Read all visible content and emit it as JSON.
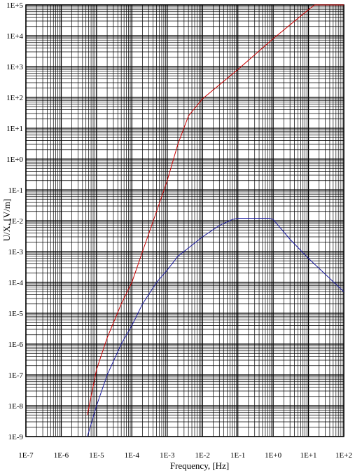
{
  "chart_data": {
    "type": "line",
    "xlabel": "Frequency, [Hz]",
    "ylabel": "U/X, [V/m]",
    "xscale": "log",
    "yscale": "log",
    "xlim": [
      1e-07,
      100
    ],
    "ylim": [
      1e-09,
      100000
    ],
    "grid": true,
    "x_tick_labels": [
      "1E-7",
      "1E-6",
      "1E-5",
      "1E-4",
      "1E-3",
      "1E-2",
      "1E-1",
      "1E+0",
      "1E+1",
      "1E+2"
    ],
    "y_tick_labels": [
      "1E-9",
      "1E-8",
      "1E-7",
      "1E-6",
      "1E-5",
      "1E-4",
      "1E-3",
      "1E-2",
      "1E-1",
      "1E+0",
      "1E+1",
      "1E+2",
      "1E+3",
      "1E+4",
      "1E+5"
    ],
    "series": [
      {
        "color": "#cc0000",
        "points": [
          [
            5.5e-06,
            5e-09
          ],
          [
            7e-06,
            2e-08
          ],
          [
            1e-05,
            1.5e-07
          ],
          [
            2e-05,
            1.6e-06
          ],
          [
            5e-05,
            2e-05
          ],
          [
            0.0001,
            0.0001
          ],
          [
            0.0002,
            0.001
          ],
          [
            0.0005,
            0.02
          ],
          [
            0.001,
            0.2
          ],
          [
            0.002,
            3
          ],
          [
            0.004,
            25
          ],
          [
            0.01,
            90
          ],
          [
            0.1,
            800
          ],
          [
            1,
            8000
          ],
          [
            10,
            70000
          ],
          [
            15,
            100000
          ],
          [
            100,
            100000
          ]
        ]
      },
      {
        "color": "#1a1aa0",
        "points": [
          [
            5.5e-06,
            1e-09
          ],
          [
            1e-05,
            1e-08
          ],
          [
            2e-05,
            1e-07
          ],
          [
            5e-05,
            1e-06
          ],
          [
            0.0001,
            4e-06
          ],
          [
            0.0002,
            2e-05
          ],
          [
            0.0005,
            0.0001
          ],
          [
            0.001,
            0.00025
          ],
          [
            0.002,
            0.0007
          ],
          [
            0.01,
            0.003
          ],
          [
            0.03,
            0.007
          ],
          [
            0.07,
            0.011
          ],
          [
            0.1,
            0.012
          ],
          [
            0.8,
            0.012
          ],
          [
            1,
            0.011
          ],
          [
            3,
            0.0025
          ],
          [
            10,
            0.0006
          ],
          [
            100,
            5e-05
          ]
        ]
      }
    ]
  }
}
